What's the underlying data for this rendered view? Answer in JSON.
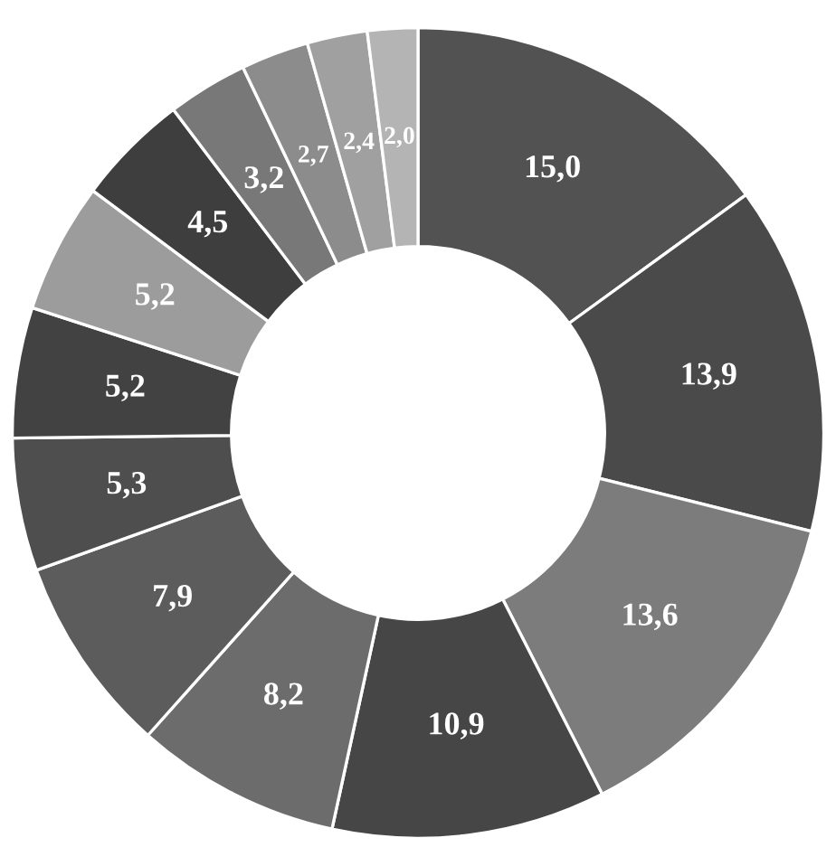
{
  "chart_data": {
    "type": "donut",
    "categories": [
      null,
      null,
      null,
      null,
      null,
      null,
      null,
      null,
      null,
      null,
      null,
      null,
      null,
      null
    ],
    "values": [
      15.0,
      13.9,
      13.6,
      10.9,
      8.2,
      7.9,
      5.3,
      5.2,
      5.2,
      4.5,
      3.2,
      2.7,
      2.4,
      2.0
    ],
    "value_labels": [
      "15,0",
      "13,9",
      "13,6",
      "10,9",
      "8,2",
      "7,9",
      "5,3",
      "5,2",
      "5,2",
      "4,5",
      "3,2",
      "2,7",
      "2,4",
      "2,0"
    ],
    "colors": [
      "#525252",
      "#4a4a4a",
      "#7c7c7c",
      "#464646",
      "#6c6c6c",
      "#5c5c5c",
      "#4e4e4e",
      "#424242",
      "#9c9c9c",
      "#3e3e3e",
      "#787878",
      "#8c8c8c",
      "#a0a0a0",
      "#b4b4b4"
    ],
    "legend": false
  }
}
